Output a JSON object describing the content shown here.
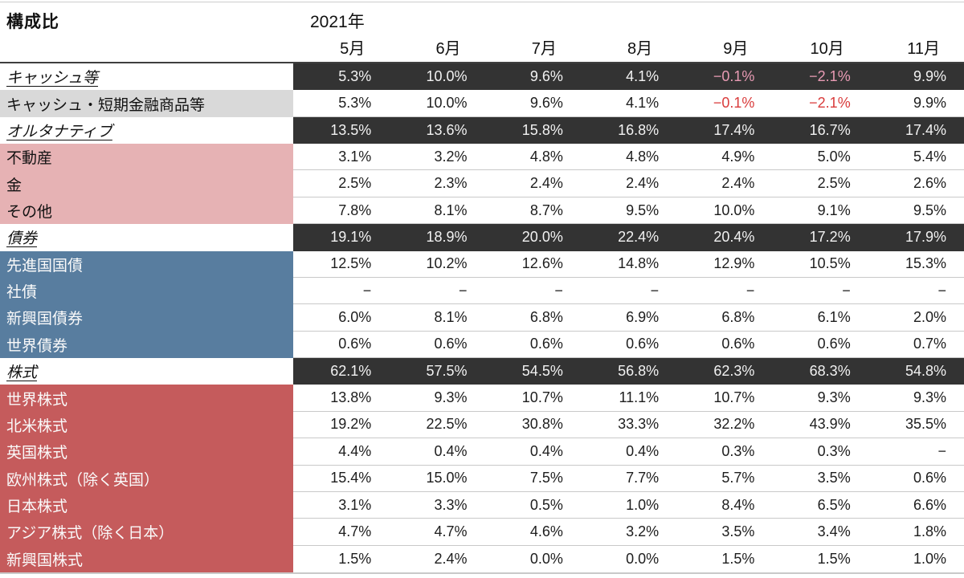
{
  "colors": {
    "category_row_bg": "#333333",
    "category_row_text": "#F2F2F2",
    "cash_label_bg": "#D9D9D9",
    "alternative_label_bg": "#E6B2B4",
    "bond_label_bg": "#587D9F",
    "equity_label_bg": "#C55B5C",
    "negative_on_dark": "#E89BB4",
    "negative_on_white": "#D93B3B",
    "grid_line": "#C9C9C9",
    "top_rule": "#3F3F3F"
  },
  "chart_data": {
    "type": "table",
    "title": "構成比",
    "year": "2021年",
    "columns": [
      "5月",
      "6月",
      "7月",
      "8月",
      "9月",
      "10月",
      "11月"
    ],
    "rows": [
      {
        "label": "キャッシュ等",
        "type": "category",
        "values": [
          "5.3%",
          "10.0%",
          "9.6%",
          "4.1%",
          "−0.1%",
          "−2.1%",
          "9.9%"
        ]
      },
      {
        "label": "キャッシュ・短期金融商品等",
        "type": "sub",
        "group": "cash",
        "values": [
          "5.3%",
          "10.0%",
          "9.6%",
          "4.1%",
          "−0.1%",
          "−2.1%",
          "9.9%"
        ]
      },
      {
        "label": "オルタナティブ",
        "type": "category",
        "values": [
          "13.5%",
          "13.6%",
          "15.8%",
          "16.8%",
          "17.4%",
          "16.7%",
          "17.4%"
        ]
      },
      {
        "label": "不動産",
        "type": "sub",
        "group": "alt",
        "values": [
          "3.1%",
          "3.2%",
          "4.8%",
          "4.8%",
          "4.9%",
          "5.0%",
          "5.4%"
        ]
      },
      {
        "label": "金",
        "type": "sub",
        "group": "alt",
        "values": [
          "2.5%",
          "2.3%",
          "2.4%",
          "2.4%",
          "2.4%",
          "2.5%",
          "2.6%"
        ]
      },
      {
        "label": "その他",
        "type": "sub",
        "group": "alt",
        "values": [
          "7.8%",
          "8.1%",
          "8.7%",
          "9.5%",
          "10.0%",
          "9.1%",
          "9.5%"
        ]
      },
      {
        "label": "債券",
        "type": "category",
        "values": [
          "19.1%",
          "18.9%",
          "20.0%",
          "22.4%",
          "20.4%",
          "17.2%",
          "17.9%"
        ]
      },
      {
        "label": "先進国国債",
        "type": "sub",
        "group": "bond",
        "values": [
          "12.5%",
          "10.2%",
          "12.6%",
          "14.8%",
          "12.9%",
          "10.5%",
          "15.3%"
        ]
      },
      {
        "label": "社債",
        "type": "sub",
        "group": "bond",
        "values": [
          "−",
          "−",
          "−",
          "−",
          "−",
          "−",
          "−"
        ]
      },
      {
        "label": "新興国債券",
        "type": "sub",
        "group": "bond",
        "values": [
          "6.0%",
          "8.1%",
          "6.8%",
          "6.9%",
          "6.8%",
          "6.1%",
          "2.0%"
        ]
      },
      {
        "label": "世界債券",
        "type": "sub",
        "group": "bond",
        "values": [
          "0.6%",
          "0.6%",
          "0.6%",
          "0.6%",
          "0.6%",
          "0.6%",
          "0.7%"
        ]
      },
      {
        "label": "株式",
        "type": "category",
        "values": [
          "62.1%",
          "57.5%",
          "54.5%",
          "56.8%",
          "62.3%",
          "68.3%",
          "54.8%"
        ]
      },
      {
        "label": "世界株式",
        "type": "sub",
        "group": "equity",
        "values": [
          "13.8%",
          "9.3%",
          "10.7%",
          "11.1%",
          "10.7%",
          "9.3%",
          "9.3%"
        ]
      },
      {
        "label": "北米株式",
        "type": "sub",
        "group": "equity",
        "values": [
          "19.2%",
          "22.5%",
          "30.8%",
          "33.3%",
          "32.2%",
          "43.9%",
          "35.5%"
        ]
      },
      {
        "label": "英国株式",
        "type": "sub",
        "group": "equity",
        "values": [
          "4.4%",
          "0.4%",
          "0.4%",
          "0.4%",
          "0.3%",
          "0.3%",
          "−"
        ]
      },
      {
        "label": "欧州株式（除く英国）",
        "type": "sub",
        "group": "equity",
        "values": [
          "15.4%",
          "15.0%",
          "7.5%",
          "7.7%",
          "5.7%",
          "3.5%",
          "0.6%"
        ]
      },
      {
        "label": "日本株式",
        "type": "sub",
        "group": "equity",
        "values": [
          "3.1%",
          "3.3%",
          "0.5%",
          "1.0%",
          "8.4%",
          "6.5%",
          "6.6%"
        ]
      },
      {
        "label": "アジア株式（除く日本）",
        "type": "sub",
        "group": "equity",
        "values": [
          "4.7%",
          "4.7%",
          "4.6%",
          "3.2%",
          "3.5%",
          "3.4%",
          "1.8%"
        ]
      },
      {
        "label": "新興国株式",
        "type": "sub",
        "group": "equity",
        "values": [
          "1.5%",
          "2.4%",
          "0.0%",
          "0.0%",
          "1.5%",
          "1.5%",
          "1.0%"
        ]
      }
    ]
  }
}
